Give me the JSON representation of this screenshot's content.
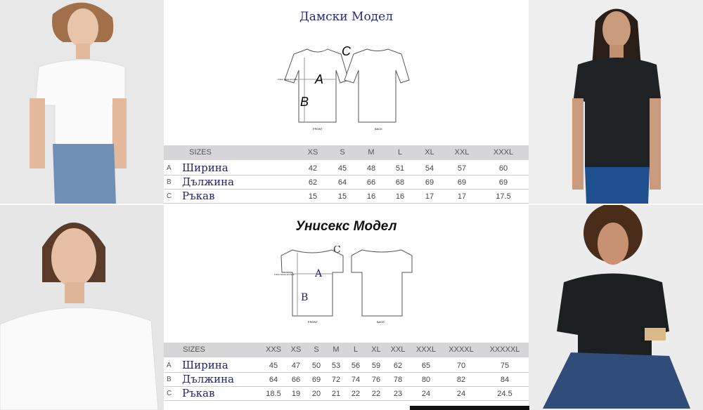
{
  "womens_chart": {
    "title": "Дамски Модел",
    "sizes_label": "SIZES",
    "sizes": [
      "XS",
      "S",
      "M",
      "L",
      "XL",
      "XXL",
      "XXXL"
    ],
    "rows": [
      {
        "letter": "A",
        "name": "Ширина",
        "values": [
          "42",
          "45",
          "48",
          "51",
          "54",
          "57",
          "60"
        ]
      },
      {
        "letter": "B",
        "name": "Дължина",
        "values": [
          "62",
          "64",
          "66",
          "68",
          "69",
          "69",
          "69"
        ]
      },
      {
        "letter": "C",
        "name": "Ръкав",
        "values": [
          "15",
          "15",
          "16",
          "16",
          "17",
          "17",
          "17.5"
        ]
      }
    ],
    "diagram": {
      "label_a": "A",
      "label_b": "B",
      "label_c": "C",
      "front": "FRONT",
      "back": "BACK",
      "note": "2.5cm below armhole"
    }
  },
  "unisex_chart": {
    "title": "Унисекс Модел",
    "sizes_label": "SIZES",
    "sizes": [
      "XXS",
      "XS",
      "S",
      "M",
      "L",
      "XL",
      "XXL",
      "XXXL",
      "XXXXL",
      "XXXXXL"
    ],
    "rows": [
      {
        "letter": "A",
        "name": "Ширина",
        "values": [
          "45",
          "47",
          "50",
          "53",
          "56",
          "59",
          "62",
          "65",
          "70",
          "75"
        ]
      },
      {
        "letter": "B",
        "name": "Дължина",
        "values": [
          "64",
          "66",
          "69",
          "72",
          "74",
          "76",
          "78",
          "80",
          "82",
          "84"
        ]
      },
      {
        "letter": "C",
        "name": "Ръкав",
        "values": [
          "18.5",
          "19",
          "20",
          "21",
          "22",
          "22",
          "23",
          "24",
          "24",
          "24.5"
        ]
      }
    ],
    "diagram": {
      "label_a": "A",
      "label_b": "B",
      "label_c": "C",
      "front": "FRONT",
      "back": "BACK",
      "note": "2.5cm below armhole"
    }
  },
  "photos": [
    {
      "shirt": "white",
      "pants": "jeans"
    },
    {
      "shirt": "black",
      "pants": "jeans"
    },
    {
      "shirt": "white",
      "pants": "none"
    },
    {
      "shirt": "black",
      "pants": "jeans"
    }
  ],
  "colors": {
    "header_bg": "#d6d6d8",
    "title_navy": "#2a2a7a",
    "name_navy": "#23236b"
  }
}
